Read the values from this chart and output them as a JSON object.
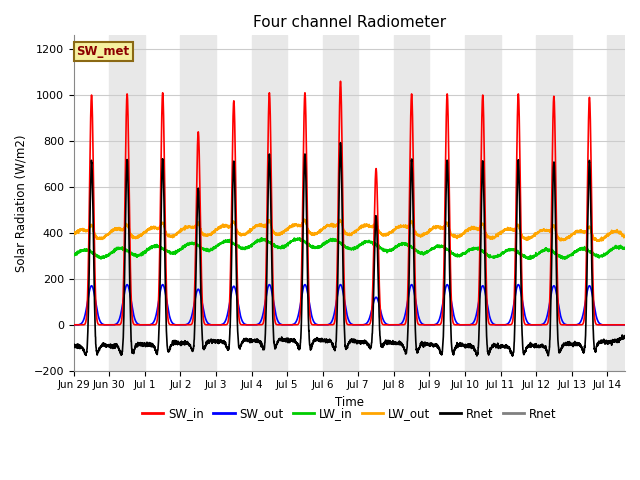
{
  "title": "Four channel Radiometer",
  "xlabel": "Time",
  "ylabel": "Solar Radiation (W/m2)",
  "ylim": [
    -200,
    1260
  ],
  "yticks": [
    -200,
    0,
    200,
    400,
    600,
    800,
    1000,
    1200
  ],
  "fig_width": 6.4,
  "fig_height": 4.8,
  "dpi": 100,
  "bg_white": "#ffffff",
  "band_gray": "#e8e8e8",
  "grid_color": "#cccccc",
  "legend_label": "SW_met",
  "legend_bg": "#f5f0a0",
  "legend_border": "#8b6914",
  "legend_text_color": "#8b0000",
  "series": {
    "SW_in": {
      "color": "#ff0000",
      "lw": 1.2
    },
    "SW_out": {
      "color": "#0000ff",
      "lw": 1.2
    },
    "LW_in": {
      "color": "#00cc00",
      "lw": 1.2
    },
    "LW_out": {
      "color": "#ffa500",
      "lw": 1.2
    },
    "Rnet": {
      "color": "#000000",
      "lw": 1.2
    },
    "Rnet2": {
      "color": "#808080",
      "lw": 1.2
    }
  },
  "tick_labels": [
    "Jun 29",
    "Jun 30",
    "Jul 1",
    "Jul 2",
    "Jul 3",
    "Jul 4",
    "Jul 5",
    "Jul 6",
    "Jul 7",
    "Jul 8",
    "Jul 9",
    "Jul 10",
    "Jul 11",
    "Jul 12",
    "Jul 13",
    "Jul 14"
  ],
  "tick_positions": [
    0,
    1,
    2,
    3,
    4,
    5,
    6,
    7,
    8,
    9,
    10,
    11,
    12,
    13,
    14,
    15
  ],
  "sw_in_peaks": [
    1000,
    1005,
    1010,
    840,
    975,
    1010,
    1010,
    1060,
    680,
    1005,
    1005,
    1000,
    1005,
    995,
    990
  ],
  "sw_out_peaks": [
    170,
    175,
    175,
    155,
    168,
    175,
    175,
    175,
    120,
    175,
    175,
    170,
    175,
    170,
    170
  ],
  "lw_in_base": 330,
  "lw_out_base": 400,
  "xlim": [
    0,
    15.5
  ]
}
